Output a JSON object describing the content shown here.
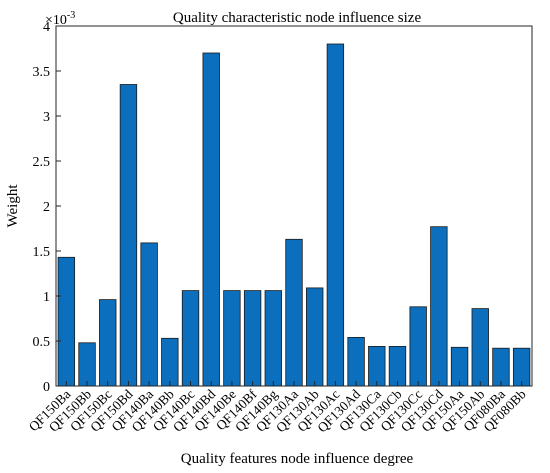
{
  "chart_data": {
    "type": "bar",
    "title": "Quality characteristic node influence size",
    "xlabel": "Quality features node influence degree",
    "ylabel": "Weight",
    "y_exponent_label": "×10",
    "y_exponent_power": "-3",
    "ylim": [
      0,
      4
    ],
    "yticks": [
      0,
      0.5,
      1,
      1.5,
      2,
      2.5,
      3,
      3.5,
      4
    ],
    "ytick_labels": [
      "0",
      "0.5",
      "1",
      "1.5",
      "2",
      "2.5",
      "3",
      "3.5",
      "4"
    ],
    "categories": [
      "QF150Ba",
      "QF150Bb",
      "QF150Bc",
      "QF150Bd",
      "QF140Ba",
      "QF140Bb",
      "QF140Bc",
      "QF140Bd",
      "QF140Be",
      "QF140Bf",
      "QF140Bg",
      "QF130Aa",
      "QF130Ab",
      "QF130Ac",
      "QF130Ad",
      "QF130Ca",
      "QF130Cb",
      "QF130Cc",
      "QF130Cd",
      "QF150Aa",
      "QF150Ab",
      "QF080Ba",
      "QF080Bb"
    ],
    "values": [
      1.43,
      0.48,
      0.96,
      3.35,
      1.59,
      0.53,
      1.06,
      3.7,
      1.06,
      1.06,
      1.06,
      1.63,
      1.09,
      3.8,
      0.54,
      0.44,
      0.44,
      0.88,
      1.77,
      0.43,
      0.86,
      0.42,
      0.42
    ],
    "bar_color": "#0b6fbd",
    "grid": false,
    "legend": "none"
  }
}
